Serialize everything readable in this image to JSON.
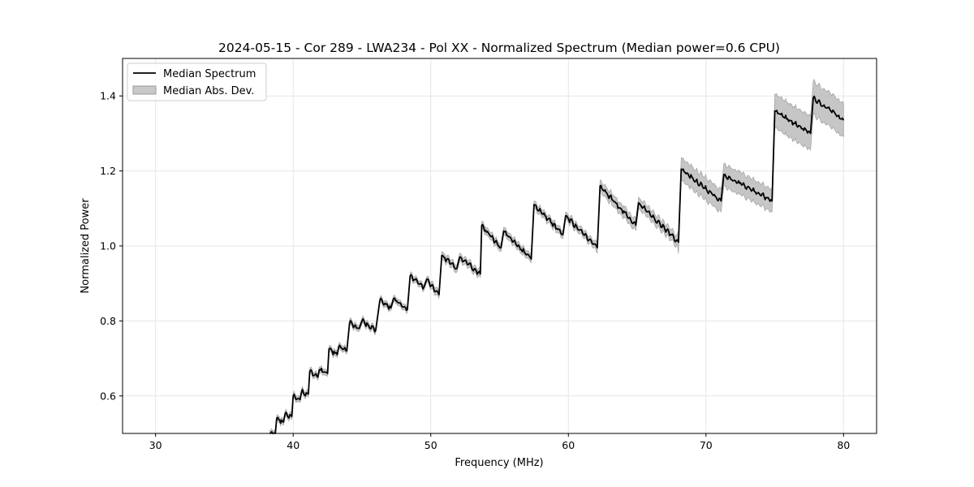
{
  "chart_data": {
    "type": "line",
    "title": "2024-05-15 - Cor 289 - LWA234 - Pol XX - Normalized Spectrum (Median power=0.6 CPU)",
    "xlabel": "Frequency (MHz)",
    "ylabel": "Normalized Power",
    "xlim": [
      27.6,
      82.4
    ],
    "ylim": [
      0.5,
      1.5
    ],
    "xticks": [
      30,
      40,
      50,
      60,
      70,
      80
    ],
    "yticks": [
      0.6,
      0.8,
      1.0,
      1.2,
      1.4
    ],
    "xtick_labels": [
      "30",
      "40",
      "50",
      "60",
      "70",
      "80"
    ],
    "ytick_labels": [
      "0.6",
      "0.8",
      "1.0",
      "1.2",
      "1.4"
    ],
    "grid": true,
    "legend": {
      "position": "top-left",
      "entries": [
        "Median Spectrum",
        "Median Abs. Dev."
      ]
    },
    "series": [
      {
        "name": "Median Spectrum",
        "color": "#000000",
        "segments": [
          {
            "start": [
              38.3,
              0.5
            ],
            "end": [
              38.7,
              0.5
            ]
          },
          {
            "start": [
              38.8,
              0.54
            ],
            "end": [
              39.3,
              0.53
            ]
          },
          {
            "start": [
              39.4,
              0.55
            ],
            "end": [
              39.9,
              0.545
            ]
          },
          {
            "start": [
              40.0,
              0.6
            ],
            "end": [
              40.5,
              0.59
            ]
          },
          {
            "start": [
              40.6,
              0.61
            ],
            "end": [
              41.1,
              0.605
            ]
          },
          {
            "start": [
              41.2,
              0.665
            ],
            "end": [
              41.8,
              0.65
            ]
          },
          {
            "start": [
              41.9,
              0.67
            ],
            "end": [
              42.5,
              0.66
            ]
          },
          {
            "start": [
              42.6,
              0.725
            ],
            "end": [
              43.2,
              0.71
            ]
          },
          {
            "start": [
              43.3,
              0.73
            ],
            "end": [
              43.9,
              0.72
            ]
          },
          {
            "start": [
              44.1,
              0.795
            ],
            "end": [
              44.8,
              0.78
            ]
          },
          {
            "start": [
              45.0,
              0.8
            ],
            "end": [
              46.0,
              0.775
            ]
          },
          {
            "start": [
              46.3,
              0.855
            ],
            "end": [
              47.1,
              0.835
            ]
          },
          {
            "start": [
              47.3,
              0.86
            ],
            "end": [
              48.3,
              0.83
            ]
          },
          {
            "start": [
              48.5,
              0.92
            ],
            "end": [
              49.5,
              0.89
            ]
          },
          {
            "start": [
              49.7,
              0.91
            ],
            "end": [
              50.6,
              0.87
            ]
          },
          {
            "start": [
              50.8,
              0.975
            ],
            "end": [
              51.9,
              0.94
            ]
          },
          {
            "start": [
              52.1,
              0.97
            ],
            "end": [
              53.6,
              0.925
            ]
          },
          {
            "start": [
              53.7,
              1.055
            ],
            "end": [
              55.1,
              0.995
            ]
          },
          {
            "start": [
              55.3,
              1.04
            ],
            "end": [
              57.3,
              0.965
            ]
          },
          {
            "start": [
              57.5,
              1.11
            ],
            "end": [
              59.6,
              1.03
            ]
          },
          {
            "start": [
              59.8,
              1.08
            ],
            "end": [
              62.1,
              0.995
            ]
          },
          {
            "start": [
              62.3,
              1.16
            ],
            "end": [
              64.9,
              1.055
            ]
          },
          {
            "start": [
              65.1,
              1.115
            ],
            "end": [
              68.0,
              1.01
            ]
          },
          {
            "start": [
              68.2,
              1.205
            ],
            "end": [
              71.1,
              1.12
            ]
          },
          {
            "start": [
              71.3,
              1.19
            ],
            "end": [
              74.8,
              1.12
            ]
          },
          {
            "start": [
              75.0,
              1.36
            ],
            "end": [
              77.6,
              1.3
            ]
          },
          {
            "start": [
              77.8,
              1.395
            ],
            "end": [
              80.0,
              1.335
            ]
          }
        ]
      },
      {
        "name": "Median Abs. Dev.",
        "color": "#a0a0a0"
      }
    ]
  }
}
